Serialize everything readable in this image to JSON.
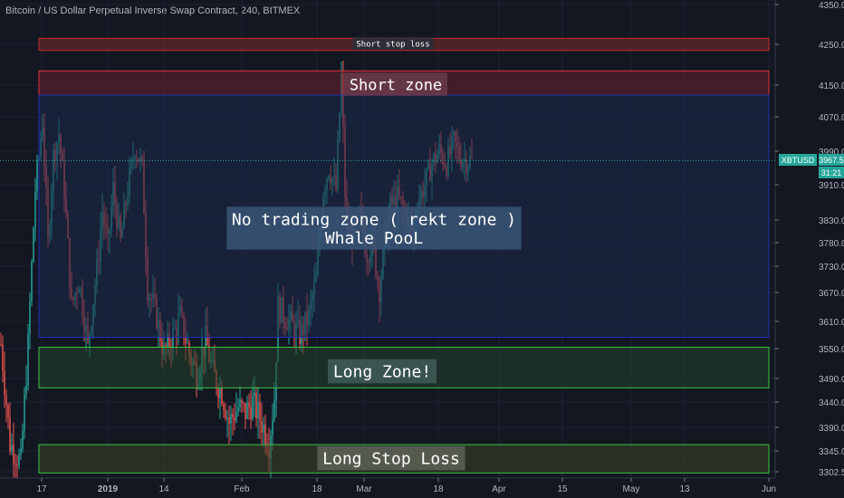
{
  "header": {
    "title": "Bitcoin / US Dollar Perpetual Inverse Swap Contract, 240, BITMEX"
  },
  "chart_data": {
    "type": "candlestick",
    "symbol": "XBTUSD",
    "last_price": "3967.5",
    "countdown": "31:21",
    "ylim": [
      3290,
      4358
    ],
    "y_ticks": [
      4350,
      4250,
      4150,
      4070,
      3990,
      3910,
      3830,
      3780,
      3730,
      3670,
      3610,
      3550,
      3490,
      3440,
      3390,
      3345,
      3302.5
    ],
    "y_tick_labels": [
      "4350.0",
      "4250.0",
      "4150.0",
      "4070.0",
      "3990.0",
      "3910.0",
      "3830.0",
      "3780.0",
      "3730.0",
      "3670.0",
      "3610.0",
      "3550.0",
      "3490.0",
      "3440.0",
      "3390.0",
      "3345.0",
      "3302.5"
    ],
    "x_ticks": [
      "17",
      "2019",
      "14",
      "Feb",
      "18",
      "Mar",
      "18",
      "Apr",
      "15",
      "May",
      "13",
      "Jun"
    ],
    "zones": [
      {
        "label": "Short stop loss",
        "from": 4235,
        "to": 4265,
        "border": "#c42b2b",
        "fill": "#7d2d2a",
        "x_start": "17",
        "x_end": "Jun"
      },
      {
        "label": "Short zone",
        "from": 4125,
        "to": 4185,
        "border": "#e03232",
        "fill": "#6a2030",
        "x_start": "17",
        "x_end": "Jun"
      },
      {
        "label": "No trading zone ( rekt zone )\nWhale PooL",
        "from": 3575,
        "to": 4125,
        "border": "#1f2fb4",
        "fill": "#1c2a4a",
        "x_start": "17",
        "x_end": "Jun"
      },
      {
        "label": "Long Zone!",
        "from": 3470,
        "to": 3553,
        "border": "#3bc43b",
        "fill": "#24432b",
        "x_start": "17",
        "x_end": "Jun"
      },
      {
        "label": "Long Stop Loss",
        "from": 3300,
        "to": 3357,
        "border": "#3bc43b",
        "fill": "#3d4328",
        "x_start": "17",
        "x_end": "Jun"
      }
    ],
    "colors": {
      "up": "#26a69a",
      "down": "#ef5350",
      "background": "#131722",
      "price_tag": "#26a69a"
    }
  }
}
